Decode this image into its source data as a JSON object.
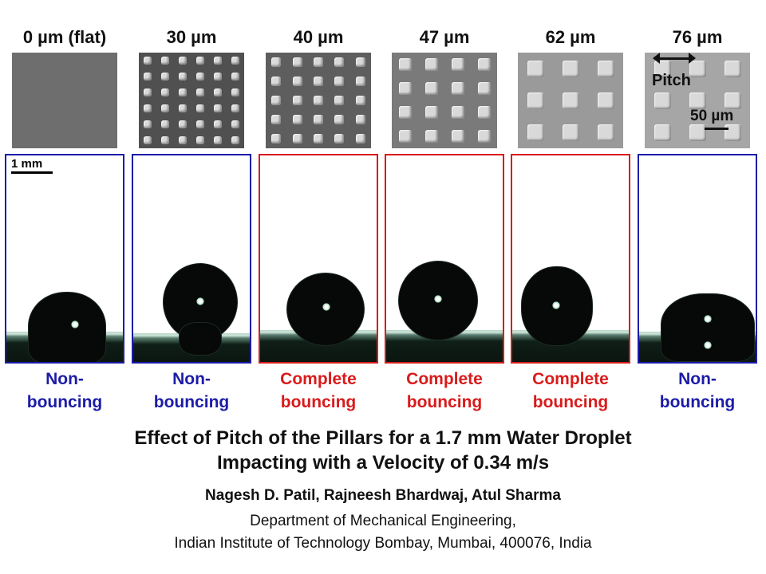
{
  "panels": [
    {
      "pitch": "0 µm (flat)",
      "outcome_line1": "Non-",
      "outcome_line2": "bouncing",
      "bouncing": false,
      "pillar_grid": 0
    },
    {
      "pitch": "30 µm",
      "outcome_line1": "Non-",
      "outcome_line2": "bouncing",
      "bouncing": false,
      "pillar_grid": 6
    },
    {
      "pitch": "40 µm",
      "outcome_line1": "Complete",
      "outcome_line2": "bouncing",
      "bouncing": true,
      "pillar_grid": 5
    },
    {
      "pitch": "47 µm",
      "outcome_line1": "Complete",
      "outcome_line2": "bouncing",
      "bouncing": true,
      "pillar_grid": 4
    },
    {
      "pitch": "62 µm",
      "outcome_line1": "Complete",
      "outcome_line2": "bouncing",
      "bouncing": true,
      "pillar_grid": 3
    },
    {
      "pitch": "76 µm",
      "outcome_line1": "Non-",
      "outcome_line2": "bouncing",
      "bouncing": false,
      "pillar_grid": 3
    }
  ],
  "scale_bar": "1 mm",
  "sem_annotation": {
    "pitch_label": "Pitch",
    "scale": "50 µm"
  },
  "colors": {
    "non_bouncing": "#1c1ca8",
    "bouncing": "#d91b1b"
  },
  "title_line1": "Effect of Pitch of the Pillars for a 1.7 mm Water Droplet",
  "title_line2": "Impacting with a Velocity of 0.34 m/s",
  "authors": "Nagesh D. Patil, Rajneesh Bhardwaj, Atul Sharma",
  "affiliation_line1": "Department of Mechanical Engineering,",
  "affiliation_line2": "Indian Institute of Technology Bombay, Mumbai, 400076, India"
}
